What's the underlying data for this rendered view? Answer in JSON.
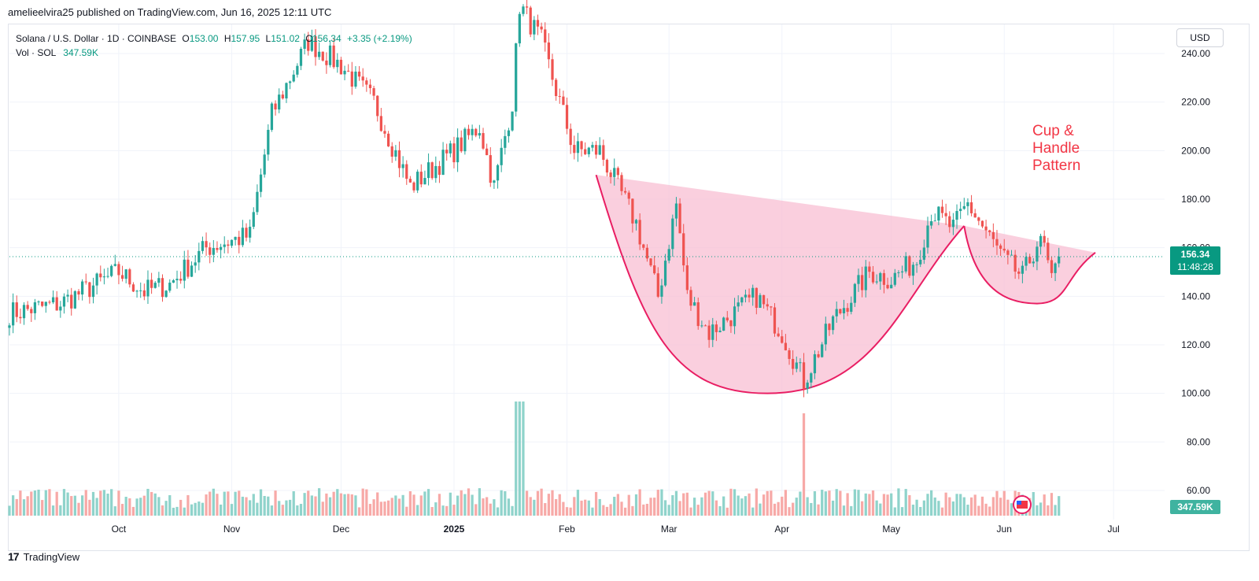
{
  "header": {
    "publisher_line": "amelieelvira25 published on TradingView.com, Jun 16, 2025 12:11 UTC"
  },
  "legend": {
    "symbol": "Solana / U.S. Dollar · 1D · COINBASE",
    "open_label": "O",
    "open_value": "153.00",
    "high_label": "H",
    "high_value": "157.95",
    "low_label": "L",
    "low_value": "151.02",
    "close_label": "C",
    "close_value": "156.34",
    "change": "+3.35 (+2.19%)",
    "volume_label": "Vol · SOL",
    "volume_value": "347.59K"
  },
  "currency_button": "USD",
  "price_badge": {
    "price": "156.34",
    "countdown": "11:48:28"
  },
  "volume_badge": "347.59K",
  "annotation": {
    "line1": "Cup &",
    "line2": "Handle",
    "line3": "Pattern"
  },
  "footer": {
    "brand": "TradingView"
  },
  "colors": {
    "up": "#26a69a",
    "down": "#ef5350",
    "vol_up": "#8fd3cb",
    "vol_down": "#f7a9a7",
    "pattern_stroke": "#e91e63",
    "pattern_fill": "#f8bbd0",
    "annotation_text": "#f23645",
    "badge_bg": "#089981"
  },
  "chart_data": {
    "type": "candlestick",
    "title": "Solana / U.S. Dollar · 1D · COINBASE",
    "y_axis": {
      "ticks": [
        240,
        220,
        200,
        180,
        160,
        140,
        120,
        100,
        80,
        60
      ],
      "tick_labels": [
        "240.00",
        "220.00",
        "200.00",
        "180.00",
        "160.00",
        "140.00",
        "120.00",
        "100.00",
        "80.00",
        "60.00"
      ],
      "range": [
        48,
        252
      ]
    },
    "x_axis": {
      "tick_labels": [
        "Oct",
        "Nov",
        "Dec",
        "2025",
        "Feb",
        "Mar",
        "Apr",
        "May",
        "Jun",
        "Jul"
      ],
      "range": [
        "2024-09-01",
        "2025-07-15"
      ]
    },
    "last_price": 156.34,
    "price_keypoints": [
      [
        "2024-09-01",
        133
      ],
      [
        "2024-09-15",
        137
      ],
      [
        "2024-10-01",
        150
      ],
      [
        "2024-10-08",
        142
      ],
      [
        "2024-10-15",
        145
      ],
      [
        "2024-10-25",
        160
      ],
      [
        "2024-11-06",
        165
      ],
      [
        "2024-11-12",
        215
      ],
      [
        "2024-11-22",
        245
      ],
      [
        "2024-12-01",
        235
      ],
      [
        "2024-12-10",
        220
      ],
      [
        "2024-12-20",
        185
      ],
      [
        "2025-01-01",
        200
      ],
      [
        "2025-01-08",
        210
      ],
      [
        "2025-01-12",
        185
      ],
      [
        "2025-01-17",
        220
      ],
      [
        "2025-01-19",
        260
      ],
      [
        "2025-01-25",
        245
      ],
      [
        "2025-02-03",
        200
      ],
      [
        "2025-02-10",
        200
      ],
      [
        "2025-02-20",
        170
      ],
      [
        "2025-02-26",
        140
      ],
      [
        "2025-03-03",
        178
      ],
      [
        "2025-03-06",
        140
      ],
      [
        "2025-03-12",
        125
      ],
      [
        "2025-03-25",
        140
      ],
      [
        "2025-04-01",
        125
      ],
      [
        "2025-04-07",
        105
      ],
      [
        "2025-04-15",
        130
      ],
      [
        "2025-04-25",
        150
      ],
      [
        "2025-05-01",
        147
      ],
      [
        "2025-05-08",
        155
      ],
      [
        "2025-05-12",
        175
      ],
      [
        "2025-05-18",
        168
      ],
      [
        "2025-05-22",
        178
      ],
      [
        "2025-06-01",
        155
      ],
      [
        "2025-06-06",
        148
      ],
      [
        "2025-06-10",
        162
      ],
      [
        "2025-06-12",
        160
      ],
      [
        "2025-06-14",
        145
      ],
      [
        "2025-06-16",
        156.34
      ]
    ],
    "volume_axis_note": "volume bars sit in lower pane; tallest spike around 2025-01-19"
  }
}
